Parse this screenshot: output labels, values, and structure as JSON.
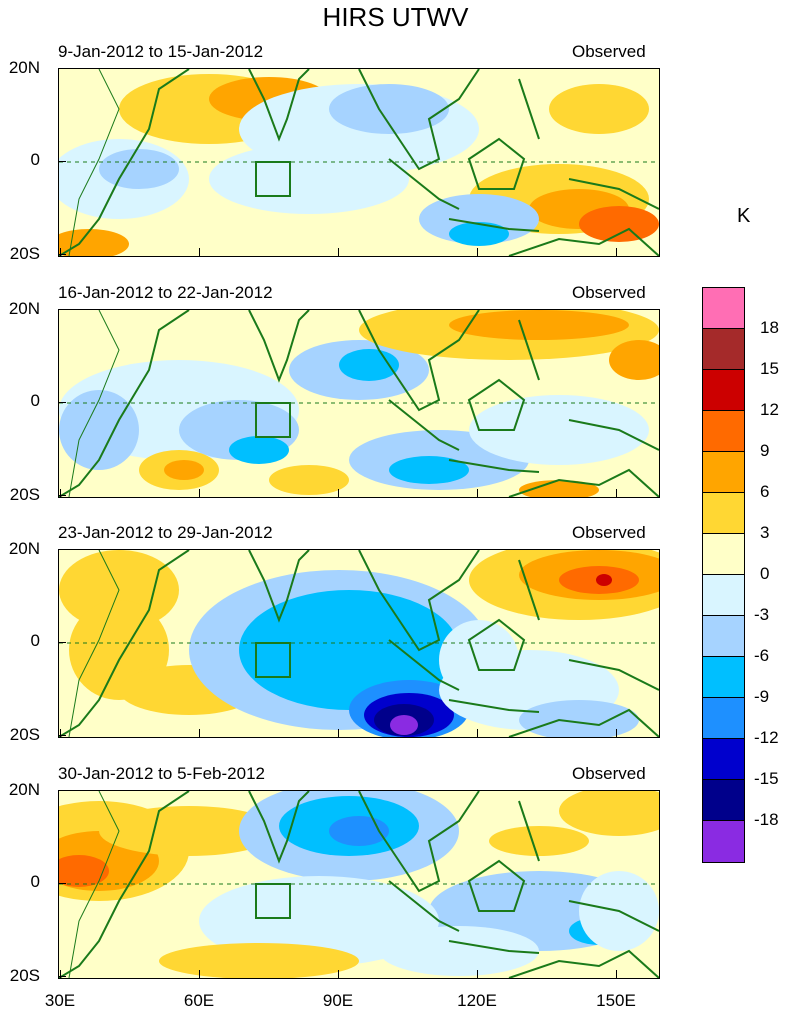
{
  "title": "HIRS UTWV",
  "unit": "K",
  "panels": [
    {
      "date_range": "9-Jan-2012 to 15-Jan-2012",
      "label": "Observed",
      "anomaly": "neutral"
    },
    {
      "date_range": "16-Jan-2012 to 22-Jan-2012",
      "label": "Observed",
      "anomaly": "mixed"
    },
    {
      "date_range": "23-Jan-2012 to 29-Jan-2012",
      "label": "Observed",
      "anomaly": "strong"
    },
    {
      "date_range": "30-Jan-2012 to 5-Feb-2012",
      "label": "Observed",
      "anomaly": "moderate"
    }
  ],
  "lat_labels": {
    "north": "20N",
    "equator": "0",
    "south": "20S"
  },
  "lon_labels": [
    "30E",
    "60E",
    "90E",
    "120E",
    "150E"
  ],
  "colorbar": {
    "labels": [
      "18",
      "15",
      "12",
      "9",
      "6",
      "3",
      "0",
      "-3",
      "-6",
      "-9",
      "-12",
      "-15",
      "-18"
    ],
    "colors": [
      "#ff6eb4",
      "#a52a2a",
      "#cc0000",
      "#ff6a00",
      "#ffa500",
      "#ffd733",
      "#ffffc8",
      "#d9f5ff",
      "#a6d3ff",
      "#00bfff",
      "#1e90ff",
      "#0000cd",
      "#00008b",
      "#8a2be2"
    ]
  },
  "palette": {
    "coast": "#1a7a1a",
    "equator": "#1a7a1a",
    "box": "#1a7a1a"
  }
}
